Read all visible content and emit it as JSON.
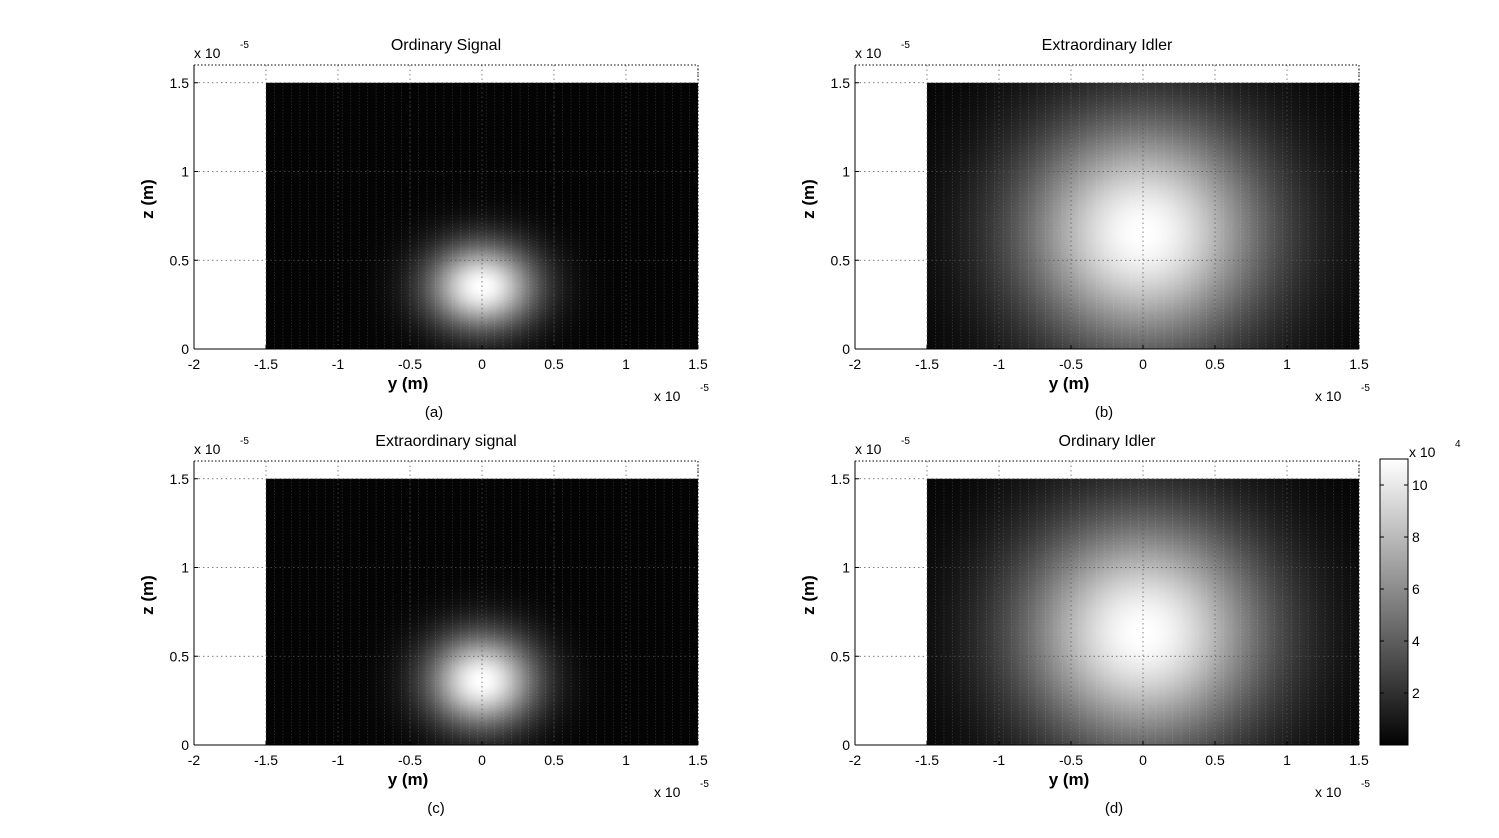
{
  "chart_data": [
    {
      "type": "heatmap",
      "title": "Ordinary Signal",
      "caption": "(a)",
      "xlabel": "y (m)",
      "ylabel": "z (m)",
      "x_ticks": [
        "-2",
        "-1.5",
        "-1",
        "-0.5",
        "0",
        "0.5",
        "1",
        "1.5"
      ],
      "y_ticks": [
        "0",
        "0.5",
        "1",
        "1.5"
      ],
      "x_exponent": "x 10",
      "x_exponent_power": "-5",
      "y_exponent": "x 10",
      "y_exponent_power": "-5",
      "xlim": [
        -2e-05,
        1.5e-05
      ],
      "ylim": [
        0,
        1.6e-05
      ],
      "data_extent": {
        "y": [
          -1.5e-05,
          1.5e-05
        ],
        "z": [
          0,
          1.5e-05
        ]
      },
      "peak": {
        "y": 0,
        "z": 3.5e-06,
        "intensity": 110000
      },
      "beam_width": {
        "y": 3.7e-06,
        "z": 2.4e-06
      },
      "grid": true,
      "colormap": "gray"
    },
    {
      "type": "heatmap",
      "title": "Extraordinary Idler",
      "caption": "(b)",
      "xlabel": "y (m)",
      "ylabel": "z (m)",
      "x_ticks": [
        "-2",
        "-1.5",
        "-1",
        "-0.5",
        "0",
        "0.5",
        "1",
        "1.5"
      ],
      "y_ticks": [
        "0",
        "0.5",
        "1",
        "1.5"
      ],
      "x_exponent": "x 10",
      "x_exponent_power": "-5",
      "y_exponent": "x 10",
      "y_exponent_power": "-5",
      "xlim": [
        -2e-05,
        1.5e-05
      ],
      "ylim": [
        0,
        1.6e-05
      ],
      "data_extent": {
        "y": [
          -1.5e-05,
          1.5e-05
        ],
        "z": [
          0,
          1.5e-05
        ]
      },
      "peak": {
        "y": 0,
        "z": 6.5e-06,
        "intensity": 110000
      },
      "beam_width": {
        "y": 8.5e-06,
        "z": 6.5e-06
      },
      "grid": true,
      "colormap": "gray"
    },
    {
      "type": "heatmap",
      "title": "Extraordinary signal",
      "caption": "(c)",
      "xlabel": "y (m)",
      "ylabel": "z (m)",
      "x_ticks": [
        "-2",
        "-1.5",
        "-1",
        "-0.5",
        "0",
        "0.5",
        "1",
        "1.5"
      ],
      "y_ticks": [
        "0",
        "0.5",
        "1",
        "1.5"
      ],
      "x_exponent": "x 10",
      "x_exponent_power": "-5",
      "y_exponent": "x 10",
      "y_exponent_power": "-5",
      "xlim": [
        -2e-05,
        1.5e-05
      ],
      "ylim": [
        0,
        1.6e-05
      ],
      "data_extent": {
        "y": [
          -1.5e-05,
          1.5e-05
        ],
        "z": [
          0,
          1.5e-05
        ]
      },
      "peak": {
        "y": 0,
        "z": 3.6e-06,
        "intensity": 110000
      },
      "beam_width": {
        "y": 3.7e-06,
        "z": 2.6e-06
      },
      "grid": true,
      "colormap": "gray"
    },
    {
      "type": "heatmap",
      "title": "Ordinary Idler",
      "caption": "(d)",
      "xlabel": "y (m)",
      "ylabel": "z (m)",
      "x_ticks": [
        "-2",
        "-1.5",
        "-1",
        "-0.5",
        "0",
        "0.5",
        "1",
        "1.5"
      ],
      "y_ticks": [
        "0",
        "0.5",
        "1",
        "1.5"
      ],
      "x_exponent": "x 10",
      "x_exponent_power": "-5",
      "y_exponent": "x 10",
      "y_exponent_power": "-5",
      "xlim": [
        -2e-05,
        1.5e-05
      ],
      "ylim": [
        0,
        1.6e-05
      ],
      "data_extent": {
        "y": [
          -1.5e-05,
          1.5e-05
        ],
        "z": [
          0,
          1.5e-05
        ]
      },
      "peak": {
        "y": 0,
        "z": 6.3e-06,
        "intensity": 110000
      },
      "beam_width": {
        "y": 8.5e-06,
        "z": 6.5e-06
      },
      "grid": true,
      "colormap": "gray"
    }
  ],
  "colorbar": {
    "ticks": [
      "2",
      "4",
      "6",
      "8",
      "10"
    ],
    "tick_values": [
      20000,
      40000,
      60000,
      80000,
      100000
    ],
    "exponent": "x 10",
    "exponent_power": "4",
    "range": [
      0,
      110000
    ],
    "colormap": "gray"
  }
}
